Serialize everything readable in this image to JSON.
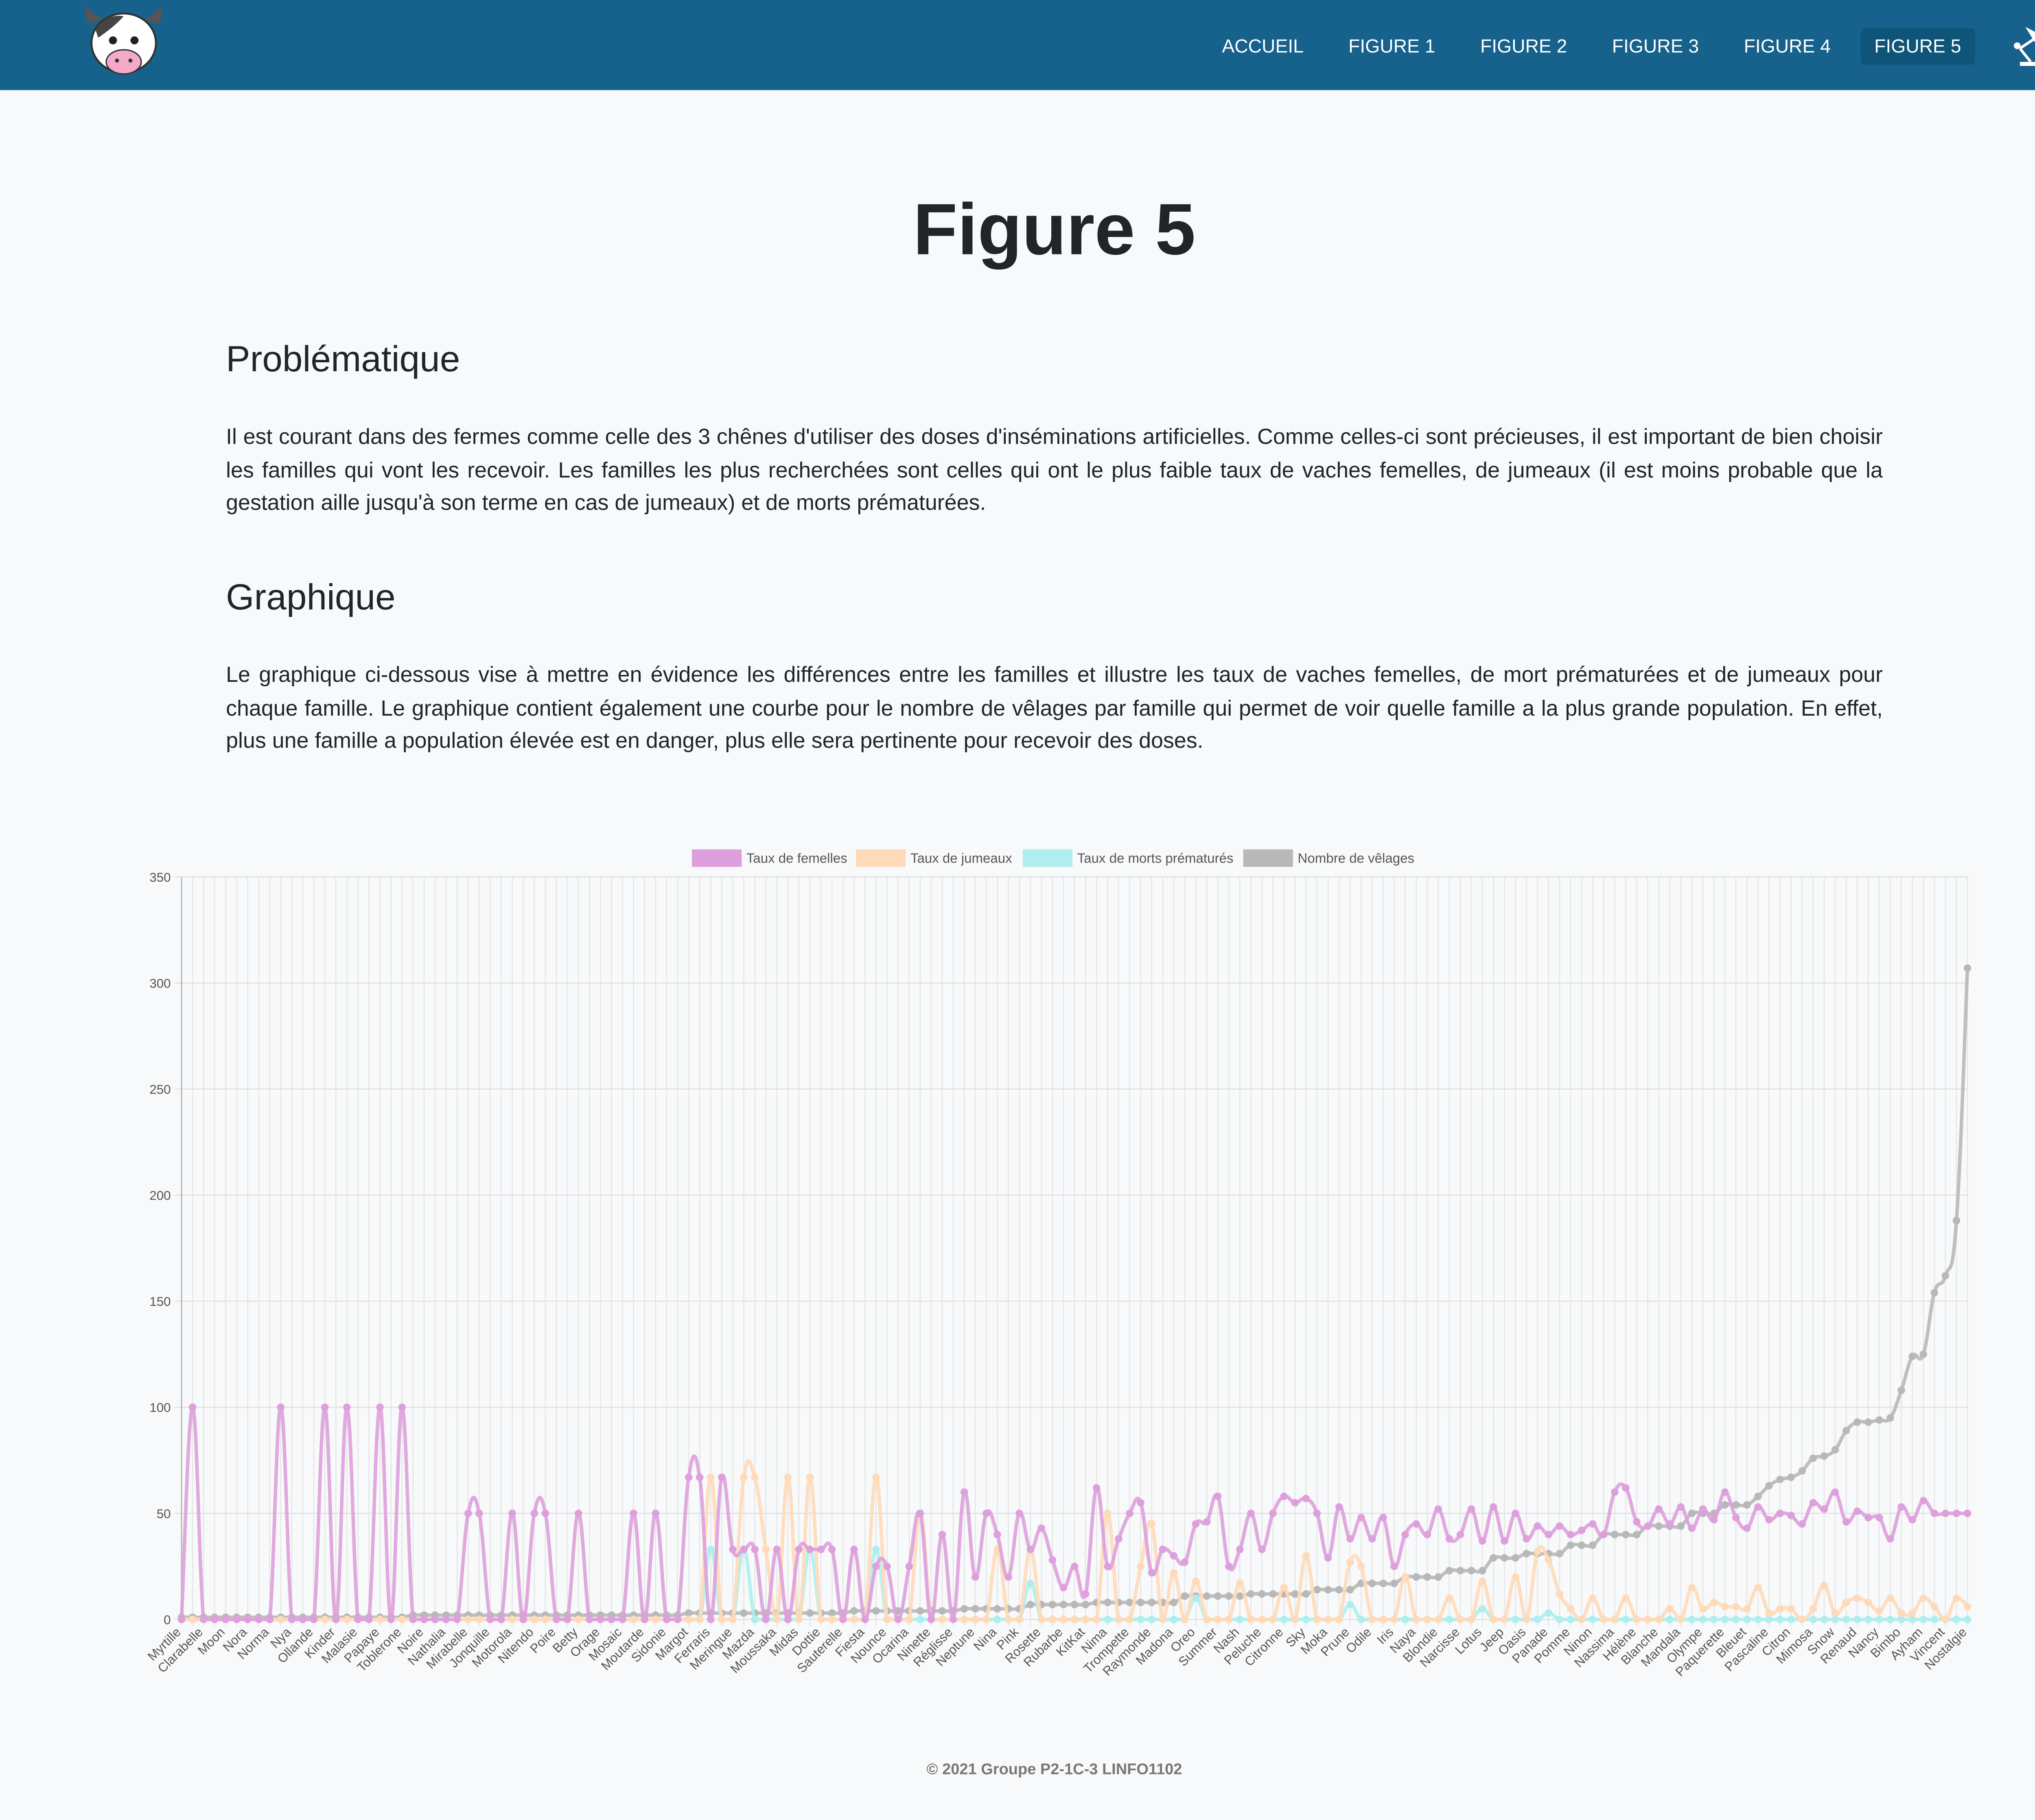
{
  "nav": {
    "items": [
      "ACCUEIL",
      "FIGURE 1",
      "FIGURE 2",
      "FIGURE 3",
      "FIGURE 4",
      "FIGURE 5"
    ],
    "active_index": 5
  },
  "header": {
    "title": "Figure 5"
  },
  "sections": [
    {
      "heading": "Problématique",
      "text": "Il est courant dans des fermes comme celle des 3 chênes d'utiliser des doses d'inséminations artificielles. Comme celles-ci sont précieuses, il est important de bien choisir les familles qui vont les recevoir. Les familles les plus recherchées sont celles qui ont le plus faible taux de vaches femelles, de jumeaux (il est moins probable que la gestation aille jusqu'à son terme en cas de jumeaux) et de morts prématurées."
    },
    {
      "heading": "Graphique",
      "text": "Le graphique ci-dessous vise à mettre en évidence les différences entre les familles et illustre les taux de vaches femelles, de mort prématurées et de jumeaux pour chaque famille. Le graphique contient également une courbe pour le nombre de vêlages par famille qui permet de voir quelle famille a la plus grande population. En effet, plus une famille a population élevée est en danger, plus elle sera pertinente pour recevoir des doses."
    }
  ],
  "chart_data": {
    "type": "line",
    "legend": "top",
    "grid": true,
    "categories": [
      "Myrtille",
      null,
      "Clarabelle",
      null,
      "Moon",
      null,
      "Nora",
      null,
      "Norma",
      null,
      "Nya",
      null,
      "Ollande",
      null,
      "Kinder",
      null,
      "Malasie",
      null,
      "Papaye",
      null,
      "Toblerone",
      null,
      "Noire",
      null,
      "Nathalia",
      null,
      "Mirabelle",
      null,
      "Jonquille",
      null,
      "Motorola",
      null,
      "Nitendo",
      null,
      "Poire",
      null,
      "Betty",
      null,
      "Orage",
      null,
      "Mosaic",
      null,
      "Moutarde",
      null,
      "Sidonie",
      null,
      "Margot",
      null,
      "Ferraris",
      null,
      "Meringue",
      null,
      "Mazda",
      null,
      "Moussaka",
      null,
      "Midas",
      null,
      "Dottie",
      null,
      "Sauterelle",
      null,
      "Fiesta",
      null,
      "Nounce",
      null,
      "Ocarina",
      null,
      "Ninette",
      null,
      "Réglisse",
      null,
      "Neptune",
      null,
      "Nina",
      null,
      "Pink",
      null,
      "Rosette",
      null,
      "Rubarbe",
      null,
      "KitKat",
      null,
      "Nima",
      null,
      "Trompette",
      null,
      "Raymonde",
      null,
      "Madona",
      null,
      "Oreo",
      null,
      "Summer",
      null,
      "Nash",
      null,
      "Peluche",
      null,
      "Citronne",
      null,
      "Sky",
      null,
      "Moka",
      null,
      "Prune",
      null,
      "Odile",
      null,
      "Iris",
      null,
      "Naya",
      null,
      "Blondie",
      null,
      "Narcisse",
      null,
      "Lotus",
      null,
      "Jeep",
      null,
      "Oasis",
      null,
      "Panade",
      null,
      "Pomme",
      null,
      "Ninon",
      null,
      "Nassima",
      null,
      "Hélène",
      null,
      "Blanche",
      null,
      "Mandala",
      null,
      "Olympe",
      null,
      "Paquerette",
      null,
      "Bleuet",
      null,
      "Pascaline",
      null,
      "Citron",
      null,
      "Mimosa",
      null,
      "Snow",
      null,
      "Renaud",
      null,
      "Nancy",
      null,
      "Bimbo",
      null,
      "Ayham",
      null,
      "Vincent",
      null,
      "Nostalgie"
    ],
    "series": [
      {
        "name": "Taux de femelles",
        "color": "#dda0dd",
        "values": [
          0,
          100,
          0,
          0,
          0,
          0,
          0,
          0,
          0,
          100,
          0,
          0,
          0,
          100,
          0,
          100,
          0,
          0,
          100,
          0,
          100,
          0,
          0,
          0,
          0,
          0,
          50,
          50,
          0,
          0,
          50,
          0,
          50,
          50,
          0,
          0,
          50,
          0,
          0,
          0,
          0,
          50,
          0,
          50,
          0,
          0,
          67,
          67,
          0,
          67,
          33,
          33,
          33,
          0,
          33,
          0,
          33,
          33,
          33,
          33,
          0,
          33,
          0,
          25,
          25,
          0,
          25,
          50,
          0,
          40,
          0,
          60,
          20,
          50,
          40,
          20,
          50,
          33,
          43,
          28,
          15,
          25,
          12,
          62,
          25,
          38,
          50,
          55,
          22,
          33,
          30,
          27,
          45,
          46,
          58,
          25,
          33,
          50,
          33,
          50,
          58,
          55,
          57,
          50,
          29,
          53,
          38,
          48,
          38,
          48,
          25,
          40,
          45,
          40,
          52,
          38,
          40,
          52,
          37,
          53,
          37,
          50,
          38,
          44,
          40,
          44,
          40,
          42,
          45,
          40,
          60,
          62,
          46,
          44,
          52,
          45,
          53,
          43,
          52,
          47,
          60,
          48,
          43,
          53,
          47,
          50,
          49,
          45,
          55,
          52,
          60,
          46,
          51,
          48,
          48,
          38,
          53,
          47,
          56,
          50,
          50,
          50,
          50
        ]
      },
      {
        "name": "Taux de jumeaux",
        "color": "#ffdab9",
        "values": [
          0,
          0,
          0,
          0,
          0,
          0,
          0,
          0,
          0,
          0,
          0,
          0,
          0,
          0,
          0,
          0,
          0,
          0,
          0,
          0,
          0,
          0,
          0,
          0,
          0,
          0,
          0,
          0,
          0,
          0,
          0,
          0,
          0,
          0,
          0,
          0,
          0,
          0,
          0,
          0,
          0,
          0,
          0,
          0,
          0,
          0,
          0,
          0,
          67,
          0,
          0,
          67,
          67,
          33,
          0,
          67,
          0,
          67,
          0,
          0,
          0,
          0,
          0,
          67,
          0,
          0,
          0,
          50,
          0,
          0,
          0,
          0,
          0,
          0,
          33,
          0,
          0,
          33,
          0,
          0,
          0,
          0,
          0,
          0,
          50,
          0,
          0,
          25,
          45,
          0,
          22,
          0,
          18,
          0,
          0,
          0,
          17,
          0,
          0,
          0,
          15,
          0,
          30,
          0,
          0,
          0,
          27,
          25,
          0,
          0,
          0,
          20,
          0,
          0,
          0,
          10,
          0,
          0,
          18,
          0,
          0,
          20,
          0,
          32,
          28,
          12,
          5,
          0,
          10,
          0,
          0,
          10,
          0,
          0,
          0,
          5,
          0,
          15,
          5,
          8,
          6,
          6,
          5,
          15,
          3,
          5,
          5,
          0,
          5,
          16,
          3,
          8,
          10,
          8,
          4,
          10,
          3,
          3,
          10,
          6,
          0,
          10,
          6
        ]
      },
      {
        "name": "Taux de morts prématurés",
        "color": "#afeeee",
        "values": [
          0,
          0,
          0,
          0,
          0,
          0,
          0,
          0,
          0,
          0,
          0,
          0,
          0,
          0,
          0,
          0,
          0,
          0,
          0,
          0,
          0,
          0,
          0,
          0,
          0,
          0,
          0,
          0,
          0,
          0,
          0,
          0,
          0,
          0,
          0,
          0,
          0,
          0,
          0,
          0,
          0,
          0,
          0,
          0,
          0,
          0,
          0,
          0,
          33,
          0,
          0,
          33,
          0,
          0,
          0,
          0,
          0,
          33,
          0,
          0,
          0,
          0,
          0,
          33,
          0,
          0,
          0,
          0,
          0,
          0,
          0,
          0,
          0,
          0,
          0,
          0,
          0,
          17,
          0,
          0,
          0,
          0,
          0,
          0,
          0,
          0,
          0,
          0,
          0,
          0,
          0,
          0,
          10,
          0,
          0,
          0,
          0,
          0,
          0,
          0,
          0,
          0,
          0,
          0,
          0,
          0,
          7,
          0,
          0,
          0,
          0,
          0,
          0,
          0,
          0,
          0,
          0,
          0,
          5,
          0,
          0,
          0,
          0,
          0,
          3,
          0,
          0,
          0,
          0,
          0,
          0,
          0,
          0,
          0,
          0,
          0,
          0,
          0,
          0,
          0,
          0,
          0,
          0,
          0,
          0,
          0,
          0,
          0,
          0,
          0,
          0,
          0,
          0,
          0,
          0,
          0,
          0,
          0,
          0,
          0,
          0,
          0,
          0
        ]
      },
      {
        "name": "Nombre de vêlages",
        "color": "#b8b8b8",
        "values": [
          1,
          1,
          1,
          1,
          1,
          1,
          1,
          1,
          1,
          1,
          1,
          1,
          1,
          1,
          1,
          1,
          1,
          1,
          1,
          1,
          1,
          2,
          2,
          2,
          2,
          2,
          2,
          2,
          2,
          2,
          2,
          2,
          2,
          2,
          2,
          2,
          2,
          2,
          2,
          2,
          2,
          2,
          2,
          2,
          2,
          2,
          3,
          3,
          3,
          3,
          3,
          3,
          3,
          3,
          3,
          3,
          3,
          3,
          3,
          3,
          3,
          4,
          4,
          4,
          4,
          4,
          4,
          4,
          4,
          4,
          4,
          5,
          5,
          5,
          5,
          5,
          5,
          7,
          7,
          7,
          7,
          7,
          7,
          8,
          8,
          8,
          8,
          8,
          8,
          8,
          8,
          11,
          11,
          11,
          11,
          11,
          11,
          12,
          12,
          12,
          12,
          12,
          12,
          14,
          14,
          14,
          14,
          17,
          17,
          17,
          17,
          20,
          20,
          20,
          20,
          23,
          23,
          23,
          23,
          29,
          29,
          29,
          31,
          31,
          31,
          31,
          35,
          35,
          35,
          40,
          40,
          40,
          40,
          44,
          44,
          44,
          44,
          50,
          50,
          50,
          54,
          54,
          54,
          58,
          63,
          66,
          67,
          70,
          76,
          77,
          80,
          89,
          93,
          93,
          94,
          95,
          108,
          124,
          125,
          154,
          162,
          188,
          307
        ]
      }
    ],
    "ylim": [
      0,
      350
    ],
    "yticks": [
      0,
      50,
      100,
      150,
      200,
      250,
      300,
      350
    ]
  },
  "footer": {
    "text": "© 2021 Groupe P2-1C-3 LINFO1102"
  }
}
